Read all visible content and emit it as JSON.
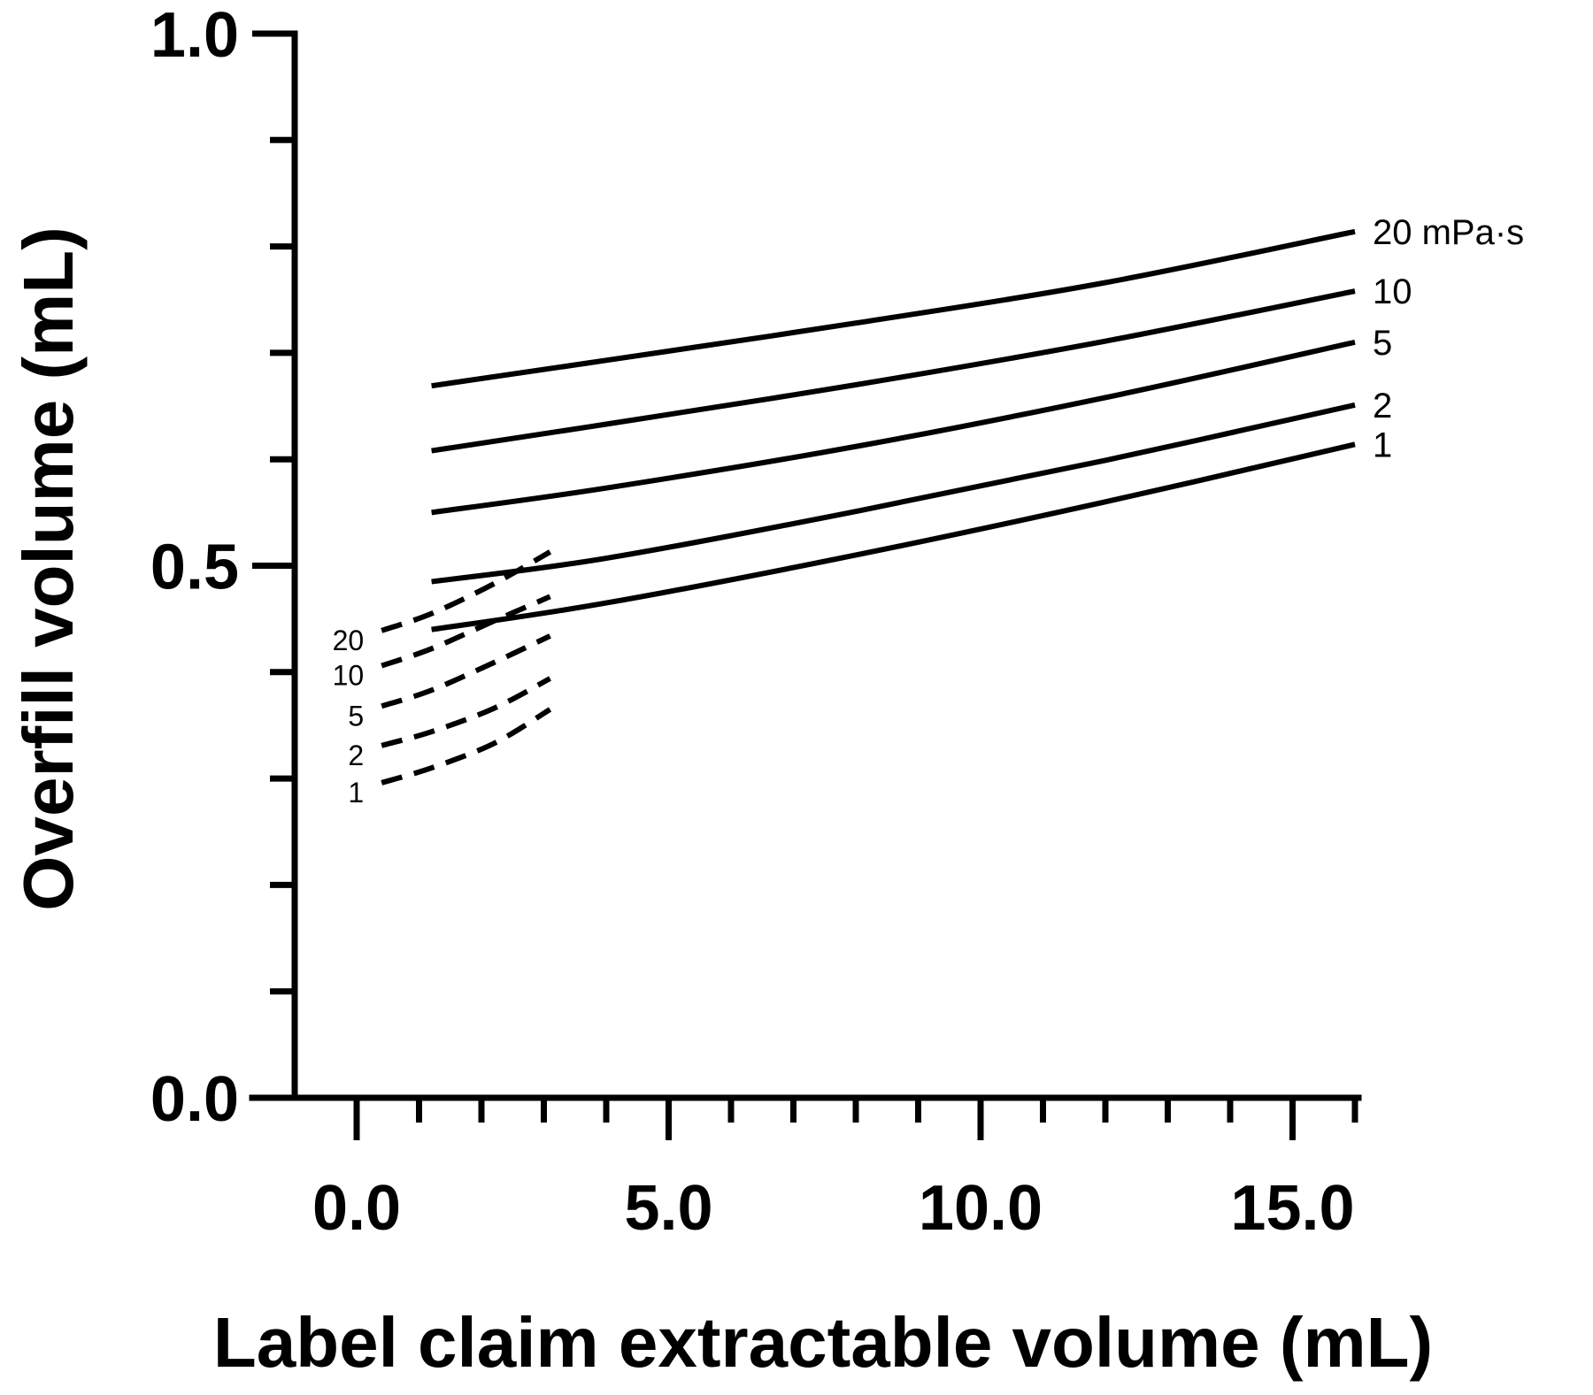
{
  "chart_data": {
    "type": "line",
    "xlabel": "Label claim extractable volume (mL)",
    "ylabel": "Overfill volume (mL)",
    "xlim": [
      -1.7,
      16
    ],
    "ylim": [
      0,
      1.0
    ],
    "x_ticks": [
      "0.0",
      "5.0",
      "10.0",
      "15.0"
    ],
    "y_ticks": [
      "0.0",
      "0.5",
      "1.0"
    ],
    "x_tick_values": [
      0,
      5,
      10,
      15
    ],
    "y_tick_values": [
      0,
      0.5,
      1.0
    ],
    "x_minor_ticks": [
      0,
      1,
      2,
      3,
      4,
      5,
      6,
      7,
      8,
      9,
      10,
      11,
      12,
      13,
      14,
      15,
      16
    ],
    "y_minor_ticks": [
      0,
      0.1,
      0.2,
      0.3,
      0.4,
      0.5,
      0.6,
      0.7,
      0.8,
      0.9,
      1.0
    ],
    "grid": false,
    "legend": "none",
    "series": [
      {
        "name": "20 mPa·s",
        "style": "solid",
        "x": [
          1.2,
          4,
          8,
          12,
          16
        ],
        "y": [
          0.669,
          0.693,
          0.728,
          0.766,
          0.814
        ]
      },
      {
        "name": "10",
        "style": "solid",
        "x": [
          1.2,
          4,
          8,
          12,
          16
        ],
        "y": [
          0.608,
          0.633,
          0.67,
          0.711,
          0.758
        ]
      },
      {
        "name": "5",
        "style": "solid",
        "x": [
          1.2,
          4,
          8,
          12,
          16
        ],
        "y": [
          0.55,
          0.573,
          0.612,
          0.658,
          0.71
        ]
      },
      {
        "name": "2",
        "style": "solid",
        "x": [
          1.2,
          4,
          8,
          12,
          16
        ],
        "y": [
          0.485,
          0.507,
          0.551,
          0.599,
          0.651
        ]
      },
      {
        "name": "1",
        "style": "solid",
        "x": [
          1.2,
          4,
          8,
          12,
          16
        ],
        "y": [
          0.44,
          0.465,
          0.51,
          0.56,
          0.614
        ]
      },
      {
        "name": "20",
        "style": "dashed",
        "x": [
          0.4,
          1.2,
          2.2,
          3.1
        ],
        "y": [
          0.439,
          0.455,
          0.483,
          0.513
        ]
      },
      {
        "name": "10",
        "style": "dashed",
        "x": [
          0.4,
          1.2,
          2.2,
          3.1
        ],
        "y": [
          0.406,
          0.422,
          0.448,
          0.471
        ]
      },
      {
        "name": "5",
        "style": "dashed",
        "x": [
          0.4,
          1.2,
          2.2,
          3.1
        ],
        "y": [
          0.368,
          0.383,
          0.409,
          0.434
        ]
      },
      {
        "name": "2",
        "style": "dashed",
        "x": [
          0.4,
          1.2,
          2.2,
          3.1
        ],
        "y": [
          0.331,
          0.344,
          0.366,
          0.394
        ]
      },
      {
        "name": "1",
        "style": "dashed",
        "x": [
          0.4,
          1.2,
          2.2,
          3.1
        ],
        "y": [
          0.296,
          0.31,
          0.333,
          0.365
        ]
      }
    ]
  }
}
